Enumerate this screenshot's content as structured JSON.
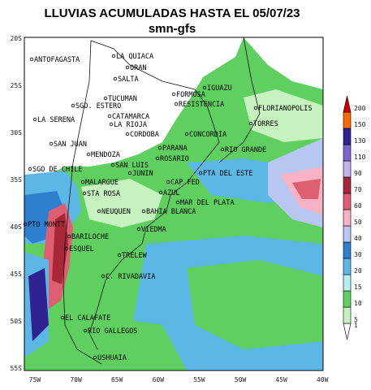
{
  "header": {
    "title": "LLUVIAS ACUMULADAS HASTA EL 05/07/23",
    "subtitle": "smn-gfs"
  },
  "map": {
    "lat_labels": [
      "20S",
      "25S",
      "30S",
      "35S",
      "40S",
      "45S",
      "50S",
      "55S"
    ],
    "lon_labels": [
      "75W",
      "70W",
      "65W",
      "60W",
      "55W",
      "50W",
      "45W",
      "40W"
    ],
    "cities": [
      "ANTOFAGASTA",
      "LA QUIACA",
      "ORAN",
      "SALTA",
      "IGUAZU",
      "FORMOSA",
      "TUCUMAN",
      "SGO. ESTERO",
      "RESISTENCIA",
      "FLORIANOPOLIS",
      "CATAMARCA",
      "LA SERENA",
      "LA RIOJA",
      "TORRES",
      "CORDOBA",
      "CONCORDIA",
      "SAN JUAN",
      "PARANA",
      "RIO GRANDE",
      "MENDOZA",
      "ROSARIO",
      "SAN LUIS",
      "SGO DE CHILE",
      "JUNIN",
      "PTA DEL ESTE",
      "MALARGUE",
      "CAP FED",
      "STA ROSA",
      "AZUL",
      "MAR DEL PLATA",
      "NEUQUEN",
      "BAHIA BLANCA",
      "PTO MONTT",
      "VIEDMA",
      "BARILOCHE",
      "ESQUEL",
      "TRELEW",
      "C. RIVADAVIA",
      "EL CALAFATE",
      "RIO GALLEGOS",
      "USHUAIA"
    ]
  },
  "legend": {
    "levels": [
      "1",
      "5",
      "10",
      "15",
      "20",
      "30",
      "40",
      "50",
      "60",
      "70",
      "90",
      "110",
      "130",
      "150",
      "200"
    ],
    "colors": [
      "#ffffff",
      "#c6f2c0",
      "#5fcf5f",
      "#b7eef2",
      "#5cb6e6",
      "#2f7fd0",
      "#b8c6f2",
      "#f7b3c4",
      "#df5f72",
      "#a8283a",
      "#c0b0ec",
      "#7a66cf",
      "#2e2391",
      "#ff6a00",
      "#cc0000"
    ]
  }
}
